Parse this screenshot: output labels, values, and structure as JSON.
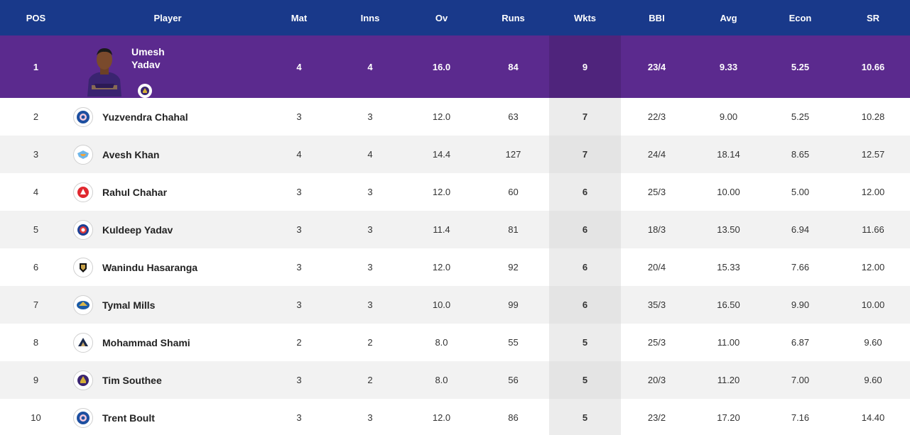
{
  "headers": {
    "pos": "POS",
    "player": "Player",
    "mat": "Mat",
    "inns": "Inns",
    "ov": "Ov",
    "runs": "Runs",
    "wkts": "Wkts",
    "bbi": "BBI",
    "avg": "Avg",
    "econ": "Econ",
    "sr": "SR"
  },
  "leader": {
    "pos": "1",
    "first_name": "Umesh",
    "last_name": "Yadav",
    "team_logo": "kkr-logo-icon",
    "mat": "4",
    "inns": "4",
    "ov": "16.0",
    "runs": "84",
    "wkts": "9",
    "bbi": "23/4",
    "avg": "9.33",
    "econ": "5.25",
    "sr": "10.66"
  },
  "rows": [
    {
      "pos": "2",
      "player": "Yuzvendra Chahal",
      "team_logo": "rr-logo-icon",
      "mat": "3",
      "inns": "3",
      "ov": "12.0",
      "runs": "63",
      "wkts": "7",
      "bbi": "22/3",
      "avg": "9.00",
      "econ": "5.25",
      "sr": "10.28"
    },
    {
      "pos": "3",
      "player": "Avesh Khan",
      "team_logo": "lsg-logo-icon",
      "mat": "4",
      "inns": "4",
      "ov": "14.4",
      "runs": "127",
      "wkts": "7",
      "bbi": "24/4",
      "avg": "18.14",
      "econ": "8.65",
      "sr": "12.57"
    },
    {
      "pos": "4",
      "player": "Rahul Chahar",
      "team_logo": "pbks-logo-icon",
      "mat": "3",
      "inns": "3",
      "ov": "12.0",
      "runs": "60",
      "wkts": "6",
      "bbi": "25/3",
      "avg": "10.00",
      "econ": "5.00",
      "sr": "12.00"
    },
    {
      "pos": "5",
      "player": "Kuldeep Yadav",
      "team_logo": "dc-logo-icon",
      "mat": "3",
      "inns": "3",
      "ov": "11.4",
      "runs": "81",
      "wkts": "6",
      "bbi": "18/3",
      "avg": "13.50",
      "econ": "6.94",
      "sr": "11.66"
    },
    {
      "pos": "6",
      "player": "Wanindu Hasaranga",
      "team_logo": "rcb-logo-icon",
      "mat": "3",
      "inns": "3",
      "ov": "12.0",
      "runs": "92",
      "wkts": "6",
      "bbi": "20/4",
      "avg": "15.33",
      "econ": "7.66",
      "sr": "12.00"
    },
    {
      "pos": "7",
      "player": "Tymal Mills",
      "team_logo": "mi-logo-icon",
      "mat": "3",
      "inns": "3",
      "ov": "10.0",
      "runs": "99",
      "wkts": "6",
      "bbi": "35/3",
      "avg": "16.50",
      "econ": "9.90",
      "sr": "10.00"
    },
    {
      "pos": "8",
      "player": "Mohammad Shami",
      "team_logo": "gt-logo-icon",
      "mat": "2",
      "inns": "2",
      "ov": "8.0",
      "runs": "55",
      "wkts": "5",
      "bbi": "25/3",
      "avg": "11.00",
      "econ": "6.87",
      "sr": "9.60"
    },
    {
      "pos": "9",
      "player": "Tim Southee",
      "team_logo": "kkr-logo-icon",
      "mat": "3",
      "inns": "2",
      "ov": "8.0",
      "runs": "56",
      "wkts": "5",
      "bbi": "20/3",
      "avg": "11.20",
      "econ": "7.00",
      "sr": "9.60"
    },
    {
      "pos": "10",
      "player": "Trent Boult",
      "team_logo": "rr-logo-icon",
      "mat": "3",
      "inns": "3",
      "ov": "12.0",
      "runs": "86",
      "wkts": "5",
      "bbi": "23/2",
      "avg": "17.20",
      "econ": "7.16",
      "sr": "14.40"
    }
  ],
  "colors": {
    "header_bg": "#19398a",
    "leader_bg": "#5b2a8e",
    "row_alt_bg": "#f2f2f2"
  }
}
